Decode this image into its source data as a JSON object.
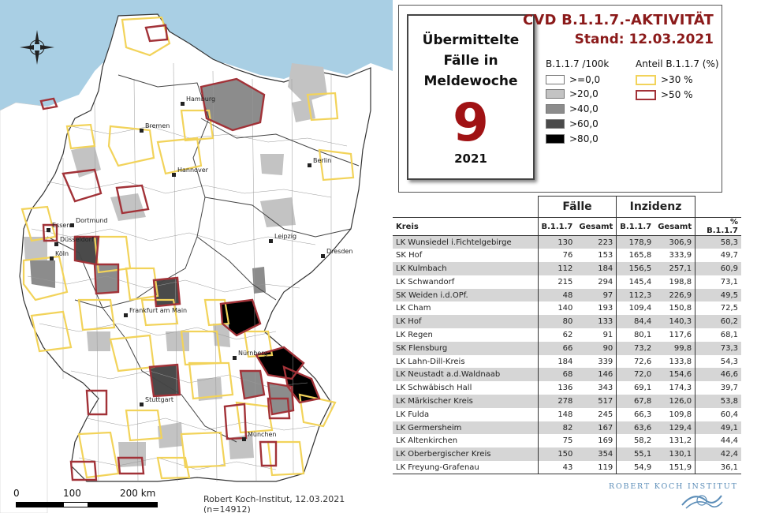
{
  "map": {
    "cities": [
      {
        "name": "Hamburg"
      },
      {
        "name": "Bremen"
      },
      {
        "name": "Berlin"
      },
      {
        "name": "Hannover"
      },
      {
        "name": "Dortmund"
      },
      {
        "name": "Essen"
      },
      {
        "name": "Düsseldorf"
      },
      {
        "name": "Köln"
      },
      {
        "name": "Leipzig"
      },
      {
        "name": "Dresden"
      },
      {
        "name": "Frankfurt am Main"
      },
      {
        "name": "Nürnberg"
      },
      {
        "name": "Stuttgart"
      },
      {
        "name": "München"
      }
    ],
    "scale_labels": [
      "0",
      "100",
      "200 km"
    ],
    "credit": "Robert Koch-Institut, 12.03.2021 (n=14912)",
    "colors": {
      "sea": "#a9cfe4",
      "land_white": "#ffffff",
      "gray_20": "#c3c3c3",
      "gray_40": "#8c8c8c",
      "gray_60": "#4a4a4a",
      "black_80": "#000000",
      "outline_30": "#f2d35a",
      "outline_50": "#a23238"
    }
  },
  "week_box": {
    "caption": "Übermittelte Fälle in Meldewoche",
    "week": "9",
    "year": "2021"
  },
  "header": {
    "title": "CVD B.1.1.7.-AKTIVITÄT",
    "stand": "Stand: 12.03.2021"
  },
  "legend_fill": {
    "title": "B.1.1.7 /100k",
    "items": [
      {
        "label": ">=0,0",
        "color": "#ffffff"
      },
      {
        "label": ">20,0",
        "color": "#c3c3c3"
      },
      {
        "label": ">40,0",
        "color": "#8c8c8c"
      },
      {
        "label": ">60,0",
        "color": "#4a4a4a"
      },
      {
        "label": ">80,0",
        "color": "#000000"
      }
    ]
  },
  "legend_outline": {
    "title": "Anteil B.1.1.7 (%)",
    "items": [
      {
        "label": ">30 %",
        "color": "#f2d35a"
      },
      {
        "label": ">50 %",
        "color": "#a23238"
      }
    ]
  },
  "table": {
    "group_faelle": "Fälle",
    "group_inzidenz": "Inzidenz",
    "columns": [
      "Kreis",
      "B.1.1.7",
      "Gesamt",
      "B.1.1.7",
      "Gesamt",
      "% B.1.1.7"
    ],
    "rows": [
      [
        "LK Wunsiedel i.Fichtelgebirge",
        "130",
        "223",
        "178,9",
        "306,9",
        "58,3"
      ],
      [
        "SK Hof",
        "76",
        "153",
        "165,8",
        "333,9",
        "49,7"
      ],
      [
        "LK Kulmbach",
        "112",
        "184",
        "156,5",
        "257,1",
        "60,9"
      ],
      [
        "LK Schwandorf",
        "215",
        "294",
        "145,4",
        "198,8",
        "73,1"
      ],
      [
        "SK Weiden i.d.OPf.",
        "48",
        "97",
        "112,3",
        "226,9",
        "49,5"
      ],
      [
        "LK Cham",
        "140",
        "193",
        "109,4",
        "150,8",
        "72,5"
      ],
      [
        "LK Hof",
        "80",
        "133",
        "84,4",
        "140,3",
        "60,2"
      ],
      [
        "LK Regen",
        "62",
        "91",
        "80,1",
        "117,6",
        "68,1"
      ],
      [
        "SK Flensburg",
        "66",
        "90",
        "73,2",
        "99,8",
        "73,3"
      ],
      [
        "LK Lahn-Dill-Kreis",
        "184",
        "339",
        "72,6",
        "133,8",
        "54,3"
      ],
      [
        "LK Neustadt a.d.Waldnaab",
        "68",
        "146",
        "72,0",
        "154,6",
        "46,6"
      ],
      [
        "LK Schwäbisch Hall",
        "136",
        "343",
        "69,1",
        "174,3",
        "39,7"
      ],
      [
        "LK Märkischer Kreis",
        "278",
        "517",
        "67,8",
        "126,0",
        "53,8"
      ],
      [
        "LK Fulda",
        "148",
        "245",
        "66,3",
        "109,8",
        "60,4"
      ],
      [
        "LK Germersheim",
        "82",
        "167",
        "63,6",
        "129,4",
        "49,1"
      ],
      [
        "LK Altenkirchen",
        "75",
        "169",
        "58,2",
        "131,2",
        "44,4"
      ],
      [
        "LK Oberbergischer Kreis",
        "150",
        "354",
        "55,1",
        "130,1",
        "42,4"
      ],
      [
        "LK Freyung-Grafenau",
        "43",
        "119",
        "54,9",
        "151,9",
        "36,1"
      ]
    ]
  },
  "logo": {
    "text": "ROBERT KOCH INSTITUT"
  }
}
